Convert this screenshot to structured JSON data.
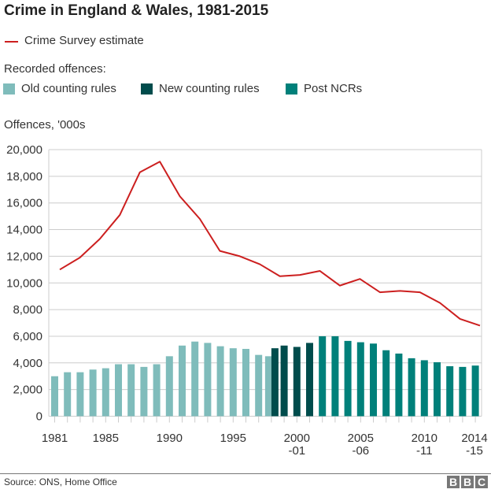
{
  "chart_data": {
    "type": "bar+line",
    "title": "Crime in England & Wales, 1981-2015",
    "ylabel": "Offences, '000s",
    "ylim": [
      0,
      20000
    ],
    "yticks": [
      "0",
      "2,000",
      "4,000",
      "6,000",
      "8,000",
      "10,000",
      "12,000",
      "14,000",
      "16,000",
      "18,000",
      "20,000"
    ],
    "xtick_labels": [
      {
        "l1": "1981",
        "l2": "",
        "slot": 0
      },
      {
        "l1": "1985",
        "l2": "",
        "slot": 4
      },
      {
        "l1": "1990",
        "l2": "",
        "slot": 9
      },
      {
        "l1": "1995",
        "l2": "",
        "slot": 14
      },
      {
        "l1": "2000",
        "l2": "-01",
        "slot": 19
      },
      {
        "l1": "2005",
        "l2": "-06",
        "slot": 24
      },
      {
        "l1": "2010",
        "l2": "-11",
        "slot": 29
      },
      {
        "l1": "2014",
        "l2": "-15",
        "slot": 33
      }
    ],
    "grid": true,
    "legend_heading": "Recorded offences:",
    "line_series": {
      "name": "Crime Survey estimate",
      "color": "#cc1f1f",
      "values": [
        11000,
        11900,
        13300,
        15100,
        18300,
        19100,
        16500,
        14800,
        12400,
        12000,
        11400,
        10500,
        10600,
        10900,
        9800,
        10300,
        9300,
        9400,
        9300,
        8500,
        7300,
        6800
      ]
    },
    "bar_series": [
      {
        "name": "Old counting rules",
        "color": "#7fbcbb",
        "values": [
          3000,
          3300,
          3300,
          3500,
          3600,
          3900,
          3900,
          3700,
          3900,
          4500,
          5300,
          5600,
          5500,
          5250,
          5100,
          5050,
          4600,
          4500,
          null,
          null,
          null,
          null,
          null,
          null,
          null,
          null,
          null,
          null,
          null,
          null,
          null,
          null,
          null,
          null
        ]
      },
      {
        "name": "New counting rules",
        "color": "#004c4c",
        "values": [
          null,
          null,
          null,
          null,
          null,
          null,
          null,
          null,
          null,
          null,
          null,
          null,
          null,
          null,
          null,
          null,
          null,
          5100,
          5300,
          5200,
          5500,
          null,
          null,
          null,
          null,
          null,
          null,
          null,
          null,
          null,
          null,
          null,
          null,
          null
        ]
      },
      {
        "name": "Post NCRs",
        "color": "#00807a",
        "values": [
          null,
          null,
          null,
          null,
          null,
          null,
          null,
          null,
          null,
          null,
          null,
          null,
          null,
          null,
          null,
          null,
          null,
          null,
          null,
          null,
          null,
          6000,
          6000,
          5650,
          5550,
          5450,
          4950,
          4700,
          4350,
          4200,
          4050,
          3750,
          3700,
          3800
        ]
      }
    ]
  },
  "footer": {
    "source": "Source: ONS, Home Office",
    "logo": "BBC"
  }
}
